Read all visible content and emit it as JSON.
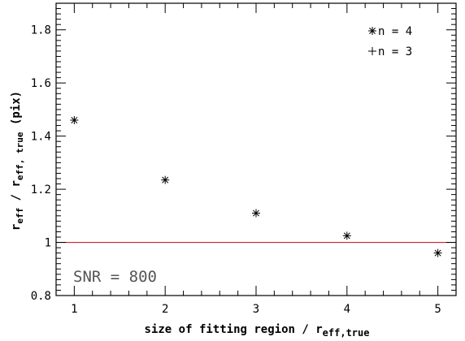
{
  "chart_data": {
    "type": "scatter",
    "xlabel_main": "size of fitting region / r",
    "xlabel_sub": "eff,true",
    "ylabel_main": "r",
    "ylabel_sub1": "eff",
    "ylabel_mid": " / r",
    "ylabel_sub2": "eff, true",
    "ylabel_unit": " (pix)",
    "xlim": [
      0.8,
      5.2
    ],
    "ylim": [
      0.8,
      1.9
    ],
    "xticks": [
      1,
      2,
      3,
      4,
      5
    ],
    "xtick_labels": [
      "1",
      "2",
      "3",
      "4",
      "5"
    ],
    "yticks": [
      0.8,
      1.0,
      1.2,
      1.4,
      1.6,
      1.8
    ],
    "ytick_labels": [
      "0.8",
      "1",
      "1.2",
      "1.4",
      "1.6",
      "1.8"
    ],
    "series": [
      {
        "name": "n = 4",
        "marker": "asterisk",
        "x": [
          1,
          2,
          3,
          4,
          5
        ],
        "y": [
          1.46,
          1.235,
          1.11,
          1.025,
          0.96
        ]
      },
      {
        "name": "n = 3",
        "marker": "plus",
        "x": [],
        "y": []
      }
    ],
    "legend_entries": [
      "n = 4",
      "n = 3"
    ],
    "legend_position": "top-right",
    "reference_line": {
      "y": 1.0,
      "color": "#c62828"
    },
    "annotation": "SNR = 800"
  }
}
